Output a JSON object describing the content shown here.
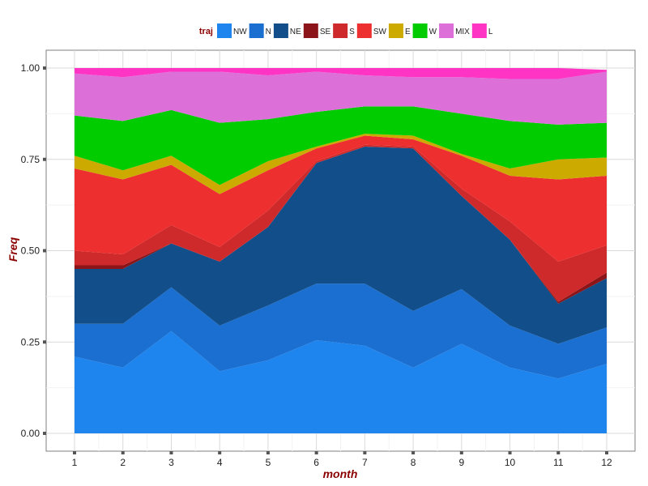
{
  "chart_data": {
    "type": "area",
    "stacked": true,
    "xlabel": "month",
    "ylabel": "Freq",
    "x": [
      1,
      2,
      3,
      4,
      5,
      6,
      7,
      8,
      9,
      10,
      11,
      12
    ],
    "xticks": [
      "1",
      "2",
      "3",
      "4",
      "5",
      "6",
      "7",
      "8",
      "9",
      "10",
      "11",
      "12"
    ],
    "yticks": [
      "0.00",
      "0.25",
      "0.50",
      "0.75",
      "1.00"
    ],
    "ylim": [
      0,
      1
    ],
    "grid": true,
    "legend_title": "traj",
    "legend_position": "top",
    "series": [
      {
        "name": "NW",
        "color": "#1f85ee",
        "values": [
          0.21,
          0.18,
          0.28,
          0.17,
          0.2,
          0.255,
          0.24,
          0.18,
          0.245,
          0.18,
          0.15,
          0.19
        ]
      },
      {
        "name": "N",
        "color": "#1b6fd0",
        "values": [
          0.09,
          0.12,
          0.12,
          0.125,
          0.15,
          0.155,
          0.17,
          0.155,
          0.15,
          0.115,
          0.095,
          0.1
        ]
      },
      {
        "name": "NE",
        "color": "#124f8a",
        "values": [
          0.15,
          0.15,
          0.12,
          0.175,
          0.215,
          0.33,
          0.375,
          0.445,
          0.255,
          0.235,
          0.11,
          0.135
        ]
      },
      {
        "name": "SE",
        "color": "#8b1518",
        "values": [
          0.01,
          0.01,
          0.0,
          0.0,
          0.0,
          0.0,
          0.0,
          0.0,
          0.0,
          0.0,
          0.005,
          0.015
        ]
      },
      {
        "name": "S",
        "color": "#cf2a2b",
        "values": [
          0.04,
          0.03,
          0.05,
          0.04,
          0.045,
          0.005,
          0.005,
          0.005,
          0.02,
          0.05,
          0.11,
          0.075
        ]
      },
      {
        "name": "SW",
        "color": "#ee2f2f",
        "values": [
          0.225,
          0.205,
          0.165,
          0.145,
          0.11,
          0.035,
          0.025,
          0.02,
          0.09,
          0.125,
          0.225,
          0.19
        ]
      },
      {
        "name": "E",
        "color": "#ccaa00",
        "values": [
          0.035,
          0.025,
          0.025,
          0.025,
          0.025,
          0.005,
          0.005,
          0.01,
          0.005,
          0.02,
          0.055,
          0.05
        ]
      },
      {
        "name": "W",
        "color": "#00cc00",
        "values": [
          0.11,
          0.135,
          0.125,
          0.17,
          0.115,
          0.095,
          0.075,
          0.08,
          0.11,
          0.13,
          0.095,
          0.095
        ]
      },
      {
        "name": "MIX",
        "color": "#dd6fd9",
        "values": [
          0.115,
          0.12,
          0.105,
          0.14,
          0.12,
          0.11,
          0.085,
          0.08,
          0.1,
          0.115,
          0.125,
          0.14
        ]
      },
      {
        "name": "L",
        "color": "#ff33c4",
        "values": [
          0.015,
          0.025,
          0.01,
          0.01,
          0.02,
          0.01,
          0.02,
          0.025,
          0.025,
          0.03,
          0.03,
          0.005
        ]
      }
    ]
  }
}
